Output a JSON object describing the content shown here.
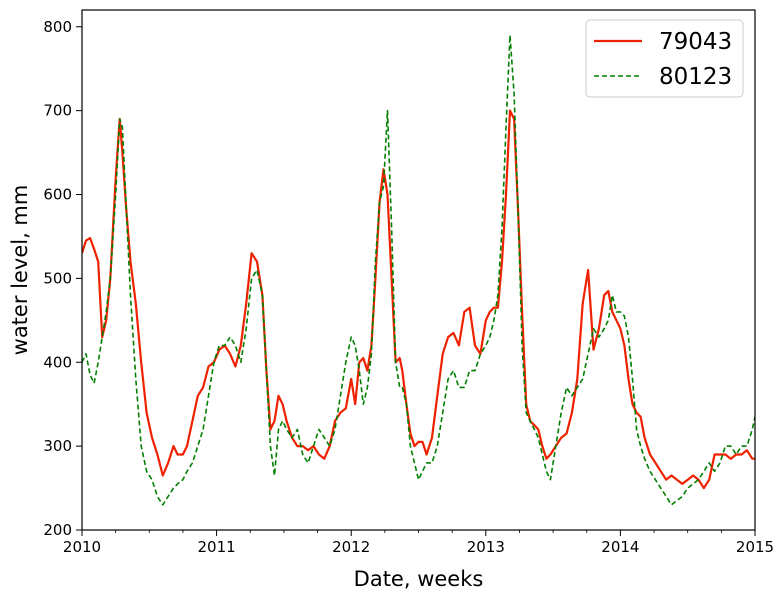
{
  "chart_data": {
    "type": "line",
    "title": "",
    "xlabel": "Date, weeks",
    "ylabel": "water level, mm",
    "xlim": [
      2010,
      2015
    ],
    "ylim": [
      200,
      820
    ],
    "x_ticks": [
      2010,
      2011,
      2012,
      2013,
      2014,
      2015
    ],
    "x_tick_labels": [
      "2010",
      "2011",
      "2012",
      "2013",
      "2014",
      "2015"
    ],
    "y_ticks": [
      200,
      300,
      400,
      500,
      600,
      700,
      800
    ],
    "y_tick_labels": [
      "200",
      "300",
      "400",
      "500",
      "600",
      "700",
      "800"
    ],
    "grid": false,
    "legend_position": "top-right",
    "series": [
      {
        "name": "79043",
        "color": "#ee2200",
        "style": "solid",
        "x": [
          2010.0,
          2010.03,
          2010.06,
          2010.09,
          2010.12,
          2010.15,
          2010.18,
          2010.21,
          2010.25,
          2010.28,
          2010.3,
          2010.33,
          2010.36,
          2010.4,
          2010.44,
          2010.48,
          2010.52,
          2010.56,
          2010.6,
          2010.64,
          2010.68,
          2010.71,
          2010.75,
          2010.78,
          2010.82,
          2010.86,
          2010.9,
          2010.94,
          2010.98,
          2011.02,
          2011.06,
          2011.1,
          2011.14,
          2011.18,
          2011.22,
          2011.26,
          2011.3,
          2011.34,
          2011.37,
          2011.4,
          2011.43,
          2011.46,
          2011.49,
          2011.52,
          2011.56,
          2011.6,
          2011.64,
          2011.68,
          2011.72,
          2011.76,
          2011.8,
          2011.84,
          2011.88,
          2011.92,
          2011.96,
          2012.0,
          2012.03,
          2012.06,
          2012.09,
          2012.12,
          2012.15,
          2012.18,
          2012.21,
          2012.24,
          2012.27,
          2012.3,
          2012.33,
          2012.36,
          2012.38,
          2012.41,
          2012.44,
          2012.47,
          2012.5,
          2012.53,
          2012.56,
          2012.6,
          2012.64,
          2012.68,
          2012.72,
          2012.76,
          2012.8,
          2012.84,
          2012.88,
          2012.92,
          2012.96,
          2013.0,
          2013.03,
          2013.06,
          2013.09,
          2013.12,
          2013.15,
          2013.18,
          2013.21,
          2013.24,
          2013.27,
          2013.3,
          2013.33,
          2013.36,
          2013.39,
          2013.42,
          2013.45,
          2013.48,
          2013.52,
          2013.56,
          2013.6,
          2013.64,
          2013.68,
          2013.72,
          2013.76,
          2013.8,
          2013.84,
          2013.88,
          2013.91,
          2013.94,
          2013.97,
          2014.0,
          2014.03,
          2014.06,
          2014.09,
          2014.12,
          2014.15,
          2014.18,
          2014.22,
          2014.26,
          2014.3,
          2014.34,
          2014.38,
          2014.42,
          2014.46,
          2014.5,
          2014.54,
          2014.58,
          2014.62,
          2014.66,
          2014.7,
          2014.74,
          2014.78,
          2014.82,
          2014.86,
          2014.9,
          2014.94,
          2014.98,
          2015.0
        ],
        "values": [
          530,
          545,
          548,
          535,
          520,
          430,
          450,
          500,
          620,
          690,
          650,
          580,
          520,
          470,
          400,
          340,
          310,
          290,
          265,
          280,
          300,
          290,
          290,
          300,
          330,
          360,
          370,
          395,
          400,
          415,
          420,
          410,
          395,
          420,
          470,
          530,
          520,
          480,
          390,
          320,
          330,
          360,
          350,
          330,
          310,
          300,
          300,
          295,
          300,
          290,
          285,
          300,
          330,
          340,
          345,
          380,
          350,
          400,
          405,
          390,
          420,
          500,
          590,
          630,
          600,
          500,
          400,
          405,
          390,
          350,
          315,
          300,
          305,
          305,
          290,
          310,
          360,
          410,
          430,
          435,
          420,
          460,
          465,
          420,
          410,
          450,
          460,
          465,
          465,
          520,
          600,
          700,
          690,
          580,
          460,
          350,
          330,
          325,
          320,
          300,
          285,
          290,
          300,
          310,
          315,
          340,
          380,
          470,
          510,
          415,
          440,
          480,
          485,
          460,
          450,
          440,
          420,
          380,
          350,
          340,
          335,
          310,
          290,
          280,
          270,
          260,
          265,
          260,
          255,
          260,
          265,
          260,
          250,
          260,
          290,
          290,
          290,
          285,
          290,
          290,
          295,
          285,
          285
        ]
      },
      {
        "name": "80123",
        "color": "#008000",
        "style": "dashed",
        "x": [
          2010.0,
          2010.03,
          2010.06,
          2010.09,
          2010.12,
          2010.15,
          2010.18,
          2010.21,
          2010.25,
          2010.28,
          2010.3,
          2010.33,
          2010.36,
          2010.4,
          2010.44,
          2010.48,
          2010.52,
          2010.56,
          2010.6,
          2010.64,
          2010.68,
          2010.71,
          2010.75,
          2010.78,
          2010.82,
          2010.86,
          2010.9,
          2010.94,
          2010.98,
          2011.02,
          2011.06,
          2011.1,
          2011.14,
          2011.18,
          2011.22,
          2011.26,
          2011.3,
          2011.34,
          2011.37,
          2011.4,
          2011.43,
          2011.46,
          2011.49,
          2011.52,
          2011.56,
          2011.6,
          2011.64,
          2011.68,
          2011.72,
          2011.76,
          2011.8,
          2011.84,
          2011.88,
          2011.92,
          2011.96,
          2012.0,
          2012.03,
          2012.06,
          2012.09,
          2012.12,
          2012.15,
          2012.18,
          2012.21,
          2012.24,
          2012.27,
          2012.3,
          2012.33,
          2012.36,
          2012.38,
          2012.41,
          2012.44,
          2012.47,
          2012.5,
          2012.53,
          2012.56,
          2012.6,
          2012.64,
          2012.68,
          2012.72,
          2012.76,
          2012.8,
          2012.84,
          2012.88,
          2012.92,
          2012.96,
          2013.0,
          2013.03,
          2013.06,
          2013.09,
          2013.12,
          2013.15,
          2013.18,
          2013.21,
          2013.24,
          2013.27,
          2013.3,
          2013.33,
          2013.36,
          2013.39,
          2013.42,
          2013.45,
          2013.48,
          2013.52,
          2013.56,
          2013.6,
          2013.64,
          2013.68,
          2013.72,
          2013.76,
          2013.8,
          2013.84,
          2013.88,
          2013.91,
          2013.94,
          2013.97,
          2014.0,
          2014.03,
          2014.06,
          2014.09,
          2014.12,
          2014.15,
          2014.18,
          2014.22,
          2014.26,
          2014.3,
          2014.34,
          2014.38,
          2014.42,
          2014.46,
          2014.5,
          2014.54,
          2014.58,
          2014.62,
          2014.66,
          2014.7,
          2014.74,
          2014.78,
          2014.82,
          2014.86,
          2014.9,
          2014.94,
          2014.98,
          2015.0
        ],
        "values": [
          400,
          410,
          385,
          375,
          400,
          430,
          460,
          500,
          600,
          690,
          680,
          580,
          480,
          380,
          300,
          270,
          260,
          240,
          230,
          240,
          250,
          255,
          260,
          270,
          280,
          300,
          320,
          360,
          400,
          420,
          420,
          430,
          420,
          400,
          440,
          500,
          510,
          480,
          390,
          300,
          265,
          320,
          330,
          320,
          310,
          320,
          290,
          280,
          300,
          320,
          310,
          300,
          320,
          360,
          400,
          430,
          420,
          390,
          350,
          370,
          410,
          520,
          590,
          610,
          700,
          560,
          400,
          370,
          370,
          350,
          300,
          280,
          260,
          270,
          280,
          280,
          300,
          340,
          380,
          390,
          370,
          370,
          390,
          390,
          410,
          420,
          430,
          450,
          480,
          560,
          680,
          790,
          720,
          580,
          420,
          340,
          330,
          320,
          310,
          290,
          270,
          260,
          300,
          340,
          370,
          360,
          370,
          380,
          410,
          440,
          430,
          440,
          450,
          480,
          460,
          460,
          455,
          430,
          380,
          320,
          300,
          285,
          270,
          260,
          250,
          240,
          230,
          235,
          240,
          250,
          255,
          260,
          270,
          280,
          270,
          280,
          300,
          300,
          290,
          300,
          300,
          320,
          335
        ]
      }
    ]
  }
}
